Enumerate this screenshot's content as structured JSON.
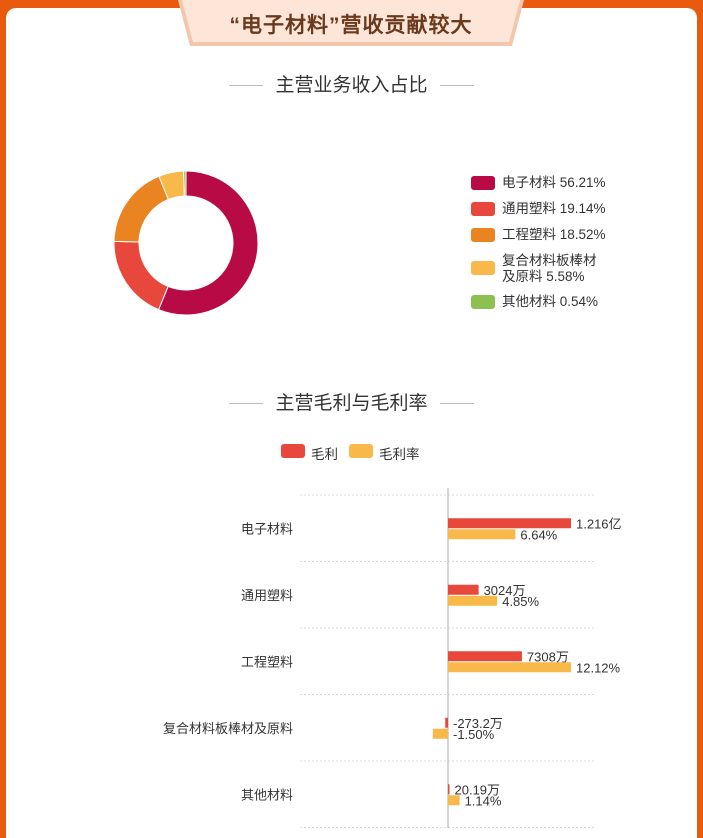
{
  "banner": {
    "title": "“电子材料”营收贡献较大"
  },
  "section1": {
    "title": "主营业务收入占比"
  },
  "section2": {
    "title": "主营毛利与毛利率"
  },
  "colors": {
    "banner_bg": "#fde6d8",
    "frame": "#e85a0e",
    "bar_profit": "#e8473c",
    "bar_margin": "#f9b84a"
  },
  "chart_data": [
    {
      "type": "pie",
      "variant": "donut",
      "slices": [
        {
          "label": "电子材料",
          "value": 56.21,
          "display": "电子材料 56.21%",
          "color": "#b80a45"
        },
        {
          "label": "通用塑料",
          "value": 19.14,
          "display": "通用塑料 19.14%",
          "color": "#e8473c"
        },
        {
          "label": "工程塑料",
          "value": 18.52,
          "display": "工程塑料 18.52%",
          "color": "#ea8420"
        },
        {
          "label": "复合材料板棒材及原料",
          "value": 5.58,
          "display_lines": [
            "复合材料板棒材",
            "及原料 5.58%"
          ],
          "color": "#f9b84a"
        },
        {
          "label": "其他材料",
          "value": 0.54,
          "display": "其他材料 0.54%",
          "color": "#8cc152"
        }
      ],
      "legend_position": "right"
    },
    {
      "type": "bar",
      "orientation": "horizontal",
      "categories": [
        "电子材料",
        "通用塑料",
        "工程塑料",
        "复合材料板棒材及原料",
        "其他材料"
      ],
      "series": [
        {
          "name": "毛利",
          "values": [
            12160,
            3024,
            7308,
            -273.2,
            20.19
          ],
          "unit": "万",
          "labels": [
            "1.216亿",
            "3024万",
            "7308万",
            "-273.2万",
            "20.19万"
          ]
        },
        {
          "name": "毛利率",
          "values": [
            6.64,
            4.85,
            12.12,
            -1.5,
            1.14
          ],
          "unit": "%",
          "labels": [
            "6.64%",
            "4.85%",
            "12.12%",
            "-1.50%",
            "1.14%"
          ]
        }
      ],
      "grid": true,
      "legend_position": "top-center"
    }
  ]
}
